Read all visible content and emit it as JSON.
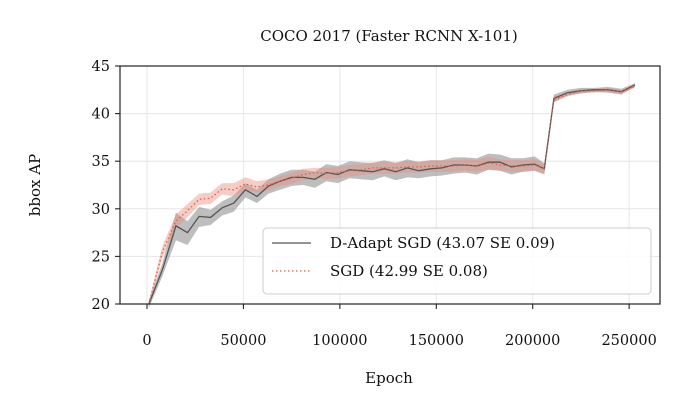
{
  "chart_data": {
    "type": "line",
    "title": "COCO 2017 (Faster RCNN X-101)",
    "xlabel": "Epoch",
    "ylabel": "bbox AP",
    "xlim": [
      -14000,
      266000
    ],
    "ylim": [
      20,
      45
    ],
    "xticks": [
      0,
      50000,
      100000,
      150000,
      200000,
      250000
    ],
    "xtick_labels": [
      "0",
      "50000",
      "100000",
      "150000",
      "200000",
      "250000"
    ],
    "yticks": [
      20,
      25,
      30,
      35,
      40,
      45
    ],
    "ytick_labels": [
      "20",
      "25",
      "30",
      "35",
      "40",
      "45"
    ],
    "grid": true,
    "legend_position": "lower-right",
    "x": [
      1000,
      8000,
      15000,
      21000,
      27000,
      33000,
      39000,
      45000,
      51000,
      57000,
      63000,
      69000,
      75000,
      81000,
      87000,
      93000,
      99000,
      105000,
      111000,
      117000,
      123000,
      129000,
      135000,
      141000,
      147000,
      153000,
      159000,
      165000,
      171000,
      177000,
      183000,
      189000,
      195000,
      201000,
      206000,
      211000,
      218000,
      225000,
      232000,
      239000,
      246000,
      253000
    ],
    "series": [
      {
        "name": "D-Adapt SGD (43.07 SE 0.09)",
        "style": "solid",
        "color": "#555555",
        "band_color": "#888888",
        "values": [
          20.0,
          23.6,
          28.2,
          27.5,
          29.2,
          29.1,
          30.1,
          30.6,
          32.0,
          31.3,
          32.4,
          32.9,
          33.3,
          33.3,
          33.1,
          33.8,
          33.6,
          34.1,
          34.0,
          33.9,
          34.2,
          33.9,
          34.3,
          34.0,
          34.2,
          34.3,
          34.6,
          34.6,
          34.5,
          34.9,
          34.9,
          34.4,
          34.6,
          34.7,
          34.2,
          41.6,
          42.2,
          42.4,
          42.5,
          42.5,
          42.3,
          43.0
        ],
        "lower": [
          19.6,
          22.9,
          26.7,
          26.2,
          28.1,
          28.3,
          29.3,
          29.7,
          31.2,
          30.6,
          31.6,
          32.0,
          32.4,
          32.5,
          32.2,
          32.9,
          32.7,
          33.2,
          33.1,
          33.0,
          33.4,
          33.0,
          33.3,
          33.2,
          33.4,
          33.5,
          33.7,
          33.8,
          33.6,
          34.1,
          34.0,
          33.6,
          33.9,
          34.0,
          33.6,
          41.2,
          41.9,
          42.1,
          42.3,
          42.2,
          42.0,
          42.8
        ],
        "upper": [
          20.4,
          24.3,
          29.6,
          28.7,
          30.2,
          29.9,
          30.8,
          31.4,
          32.7,
          32.0,
          33.1,
          33.7,
          34.1,
          34.1,
          33.9,
          34.7,
          34.5,
          35.0,
          34.9,
          34.8,
          35.1,
          34.8,
          35.2,
          34.9,
          35.1,
          35.1,
          35.4,
          35.4,
          35.3,
          35.8,
          35.7,
          35.3,
          35.3,
          35.5,
          34.8,
          42.0,
          42.5,
          42.7,
          42.7,
          42.8,
          42.6,
          43.2
        ]
      },
      {
        "name": "SGD (42.99 SE 0.08)",
        "style": "dotted",
        "color": "#d9604a",
        "band_color": "#e89080",
        "values": [
          20.0,
          25.5,
          28.7,
          29.8,
          31.0,
          31.1,
          32.1,
          32.0,
          32.6,
          32.3,
          32.5,
          32.9,
          33.2,
          33.6,
          33.8,
          33.7,
          33.8,
          34.0,
          34.1,
          34.3,
          34.3,
          34.3,
          34.4,
          34.4,
          34.5,
          34.5,
          34.5,
          34.6,
          34.5,
          34.8,
          34.6,
          34.5,
          34.5,
          34.6,
          34.2,
          41.5,
          42.0,
          42.4,
          42.4,
          42.5,
          42.3,
          42.9
        ],
        "lower": [
          19.7,
          24.9,
          28.0,
          29.1,
          30.4,
          30.5,
          31.5,
          31.3,
          31.9,
          31.7,
          31.9,
          32.4,
          32.6,
          33.0,
          33.3,
          33.1,
          33.2,
          33.4,
          33.5,
          33.7,
          33.7,
          33.7,
          33.8,
          33.8,
          33.9,
          33.9,
          33.9,
          34.0,
          33.9,
          34.1,
          34.0,
          33.9,
          33.9,
          34.0,
          33.7,
          41.2,
          41.8,
          42.2,
          42.2,
          42.3,
          42.1,
          42.7
        ],
        "upper": [
          20.3,
          26.1,
          29.4,
          30.5,
          31.6,
          31.7,
          32.7,
          32.7,
          33.3,
          32.9,
          33.1,
          33.4,
          33.8,
          34.2,
          34.3,
          34.3,
          34.4,
          34.6,
          34.7,
          34.9,
          34.9,
          34.9,
          35.0,
          35.0,
          35.1,
          35.1,
          35.1,
          35.2,
          35.1,
          35.5,
          35.2,
          35.1,
          35.1,
          35.2,
          34.7,
          41.8,
          42.2,
          42.6,
          42.6,
          42.7,
          42.5,
          43.1
        ]
      }
    ]
  }
}
